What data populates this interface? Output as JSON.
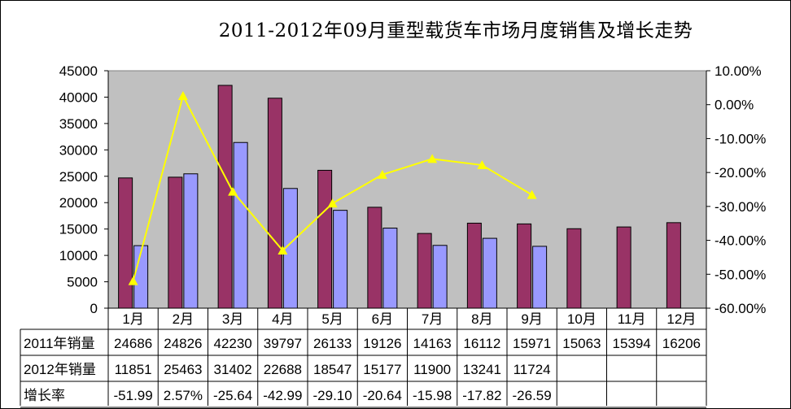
{
  "chart_data": {
    "type": "bar",
    "title": "2011-2012年09月重型载货车市场月度销售及增长走势",
    "categories": [
      "1月",
      "2月",
      "3月",
      "4月",
      "5月",
      "6月",
      "7月",
      "8月",
      "9月",
      "10月",
      "11月",
      "12月"
    ],
    "series": [
      {
        "name": "2011年销量",
        "type": "bar",
        "color": "#993366",
        "values": [
          24686,
          24826,
          42230,
          39797,
          26133,
          19126,
          14163,
          16112,
          15971,
          15063,
          15394,
          16206
        ]
      },
      {
        "name": "2012年销量",
        "type": "bar",
        "color": "#9999FF",
        "values": [
          11851,
          25463,
          31402,
          22688,
          18547,
          15177,
          11900,
          13241,
          11724,
          null,
          null,
          null
        ]
      },
      {
        "name": "增长率",
        "type": "line",
        "axis": "right",
        "color": "#FFFF00",
        "values": [
          -51.99,
          2.57,
          -25.64,
          -42.99,
          -29.1,
          -20.64,
          -15.98,
          -17.82,
          -26.59,
          null,
          null,
          null
        ]
      }
    ],
    "y_left": {
      "min": 0,
      "max": 45000,
      "step": 5000,
      "tick_labels": [
        "0",
        "5000",
        "10000",
        "15000",
        "20000",
        "25000",
        "30000",
        "35000",
        "40000",
        "45000"
      ]
    },
    "y_right": {
      "min": -60,
      "max": 10,
      "step": 10,
      "tick_labels": [
        "-60.00%",
        "-50.00%",
        "-40.00%",
        "-30.00%",
        "-20.00%",
        "-10.00%",
        "0.00%",
        "10.00%"
      ]
    },
    "grid": false,
    "legend": "data-table"
  },
  "table": {
    "rows": [
      {
        "label": "2011年销量",
        "cells": [
          "24686",
          "24826",
          "42230",
          "39797",
          "26133",
          "19126",
          "14163",
          "16112",
          "15971",
          "15063",
          "15394",
          "16206"
        ]
      },
      {
        "label": "2012年销量",
        "cells": [
          "11851",
          "25463",
          "31402",
          "22688",
          "18547",
          "15177",
          "11900",
          "13241",
          "11724",
          "",
          "",
          ""
        ]
      },
      {
        "label": "增长率",
        "cells": [
          "-51.99",
          "2.57%",
          "-25.64",
          "-42.99",
          "-29.10",
          "-20.64",
          "-15.98",
          "-17.82",
          "-26.59",
          "",
          "",
          ""
        ]
      }
    ]
  },
  "colors": {
    "plot_background": "#C0C0C0",
    "bar_2011": "#993366",
    "bar_2012": "#9999FF",
    "growth_line": "#FFFF00"
  }
}
